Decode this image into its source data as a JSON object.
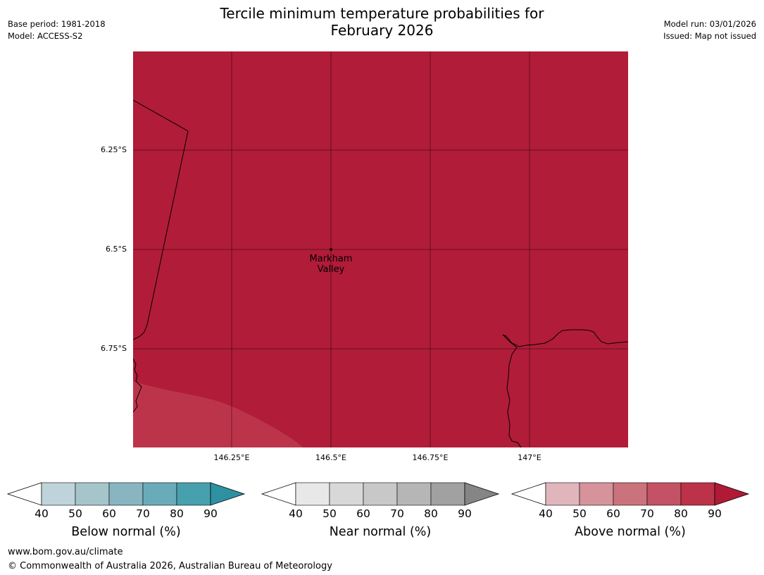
{
  "header": {
    "title": "Tercile minimum temperature probabilities for\nFebruary 2026",
    "base_period": "Base period: 1981-2018",
    "model": "Model: ACCESS-S2",
    "model_run": "Model run: 03/01/2026",
    "issued": "Issued: Map not issued"
  },
  "map": {
    "background_color": "#b11c38",
    "lower_region_color": "#bc344a",
    "lat_labels": [
      "6.25°S",
      "6.5°S",
      "6.75°S"
    ],
    "lon_labels": [
      "146.25°E",
      "146.5°E",
      "146.75°E",
      "147°E"
    ],
    "place": {
      "name": "Markham\nValley"
    }
  },
  "colorbars": [
    {
      "title": "Below normal (%)",
      "ticks": [
        "40",
        "50",
        "60",
        "70",
        "80",
        "90"
      ],
      "colors": [
        "#bed4da",
        "#a5c5cb",
        "#89b5c1",
        "#6aabb9",
        "#47a0ae",
        "#2d91a2"
      ]
    },
    {
      "title": "Near normal (%)",
      "ticks": [
        "40",
        "50",
        "60",
        "70",
        "80",
        "90"
      ],
      "colors": [
        "#e8e8e8",
        "#d8d8d8",
        "#c8c8c8",
        "#b6b6b6",
        "#a1a1a1",
        "#858585"
      ]
    },
    {
      "title": "Above normal (%)",
      "ticks": [
        "40",
        "50",
        "60",
        "70",
        "80",
        "90"
      ],
      "colors": [
        "#e0b6bc",
        "#d7939b",
        "#cb737c",
        "#c45264",
        "#bc3248",
        "#b11a36"
      ]
    }
  ],
  "footer": {
    "url": "www.bom.gov.au/climate",
    "copyright": "© Commonwealth of Australia 2026, Australian Bureau of Meteorology"
  }
}
